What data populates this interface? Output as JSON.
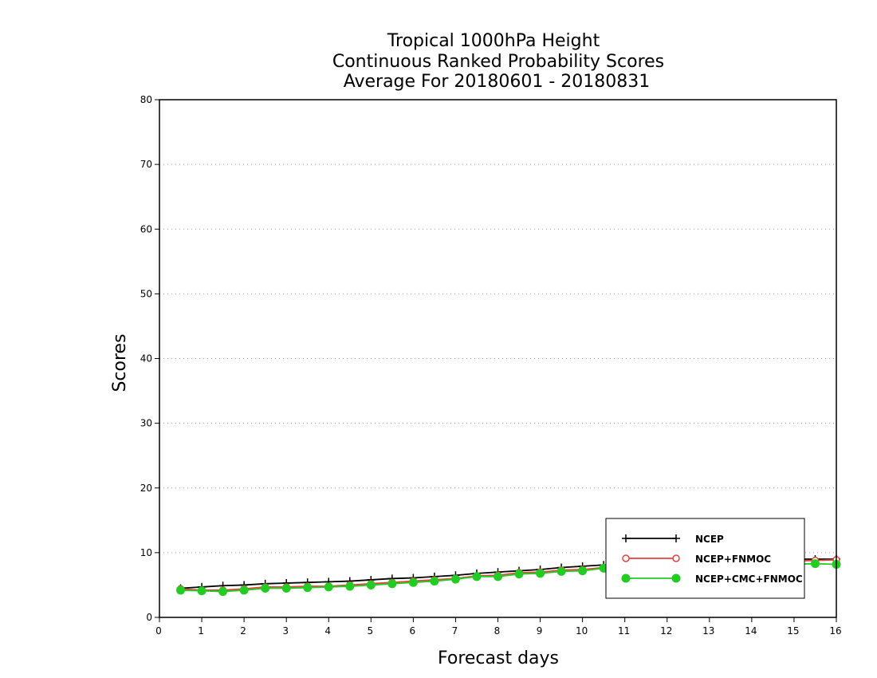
{
  "chart_data": {
    "type": "line",
    "title_lines": [
      "Tropical 1000hPa Height",
      "Continuous Ranked Probability Scores",
      "Average For 20180601 - 20180831"
    ],
    "xlabel": "Forecast days",
    "ylabel": "Scores",
    "xlim": [
      0,
      16
    ],
    "ylim": [
      0,
      80
    ],
    "xticks": [
      0,
      1,
      2,
      3,
      4,
      5,
      6,
      7,
      8,
      9,
      10,
      11,
      12,
      13,
      14,
      15,
      16
    ],
    "yticks": [
      0,
      10,
      20,
      30,
      40,
      50,
      60,
      70,
      80
    ],
    "grid": "horizontal dotted",
    "legend_position": "bottom-right",
    "x": [
      0.5,
      1,
      1.5,
      2,
      2.5,
      3,
      3.5,
      4,
      4.5,
      5,
      5.5,
      6,
      6.5,
      7,
      7.5,
      8,
      8.5,
      9,
      9.5,
      10,
      10.5,
      11,
      11.5,
      12,
      12.5,
      13,
      13.5,
      14,
      14.5,
      15,
      15.5,
      16
    ],
    "series": [
      {
        "name": "NCEP",
        "color": "#000000",
        "marker": "plus",
        "values": [
          4.5,
          4.7,
          4.9,
          5.0,
          5.2,
          5.3,
          5.4,
          5.5,
          5.6,
          5.8,
          6.0,
          6.1,
          6.3,
          6.5,
          6.8,
          7.0,
          7.2,
          7.4,
          7.7,
          7.9,
          8.1,
          8.3,
          8.4,
          8.5,
          8.6,
          8.7,
          8.8,
          8.9,
          9.0,
          9.0,
          9.0,
          9.0
        ]
      },
      {
        "name": "NCEP+FNMOC",
        "color": "#e8413c",
        "marker": "open-circle",
        "values": [
          4.4,
          4.2,
          4.2,
          4.4,
          4.7,
          4.7,
          4.8,
          4.8,
          5.0,
          5.2,
          5.4,
          5.6,
          5.8,
          6.0,
          6.4,
          6.5,
          6.9,
          7.0,
          7.3,
          7.4,
          7.7,
          7.9,
          8.0,
          8.1,
          8.2,
          8.3,
          8.4,
          8.5,
          8.6,
          8.7,
          8.8,
          8.9
        ]
      },
      {
        "name": "NCEP+CMC+FNMOC",
        "color": "#22cc22",
        "marker": "filled-circle",
        "values": [
          4.2,
          4.1,
          4.0,
          4.2,
          4.5,
          4.5,
          4.6,
          4.7,
          4.8,
          5.0,
          5.2,
          5.4,
          5.6,
          5.9,
          6.3,
          6.3,
          6.7,
          6.8,
          7.1,
          7.2,
          7.6,
          7.7,
          7.8,
          7.8,
          7.9,
          8.0,
          8.0,
          8.1,
          8.2,
          8.2,
          8.3,
          8.2
        ]
      }
    ]
  }
}
